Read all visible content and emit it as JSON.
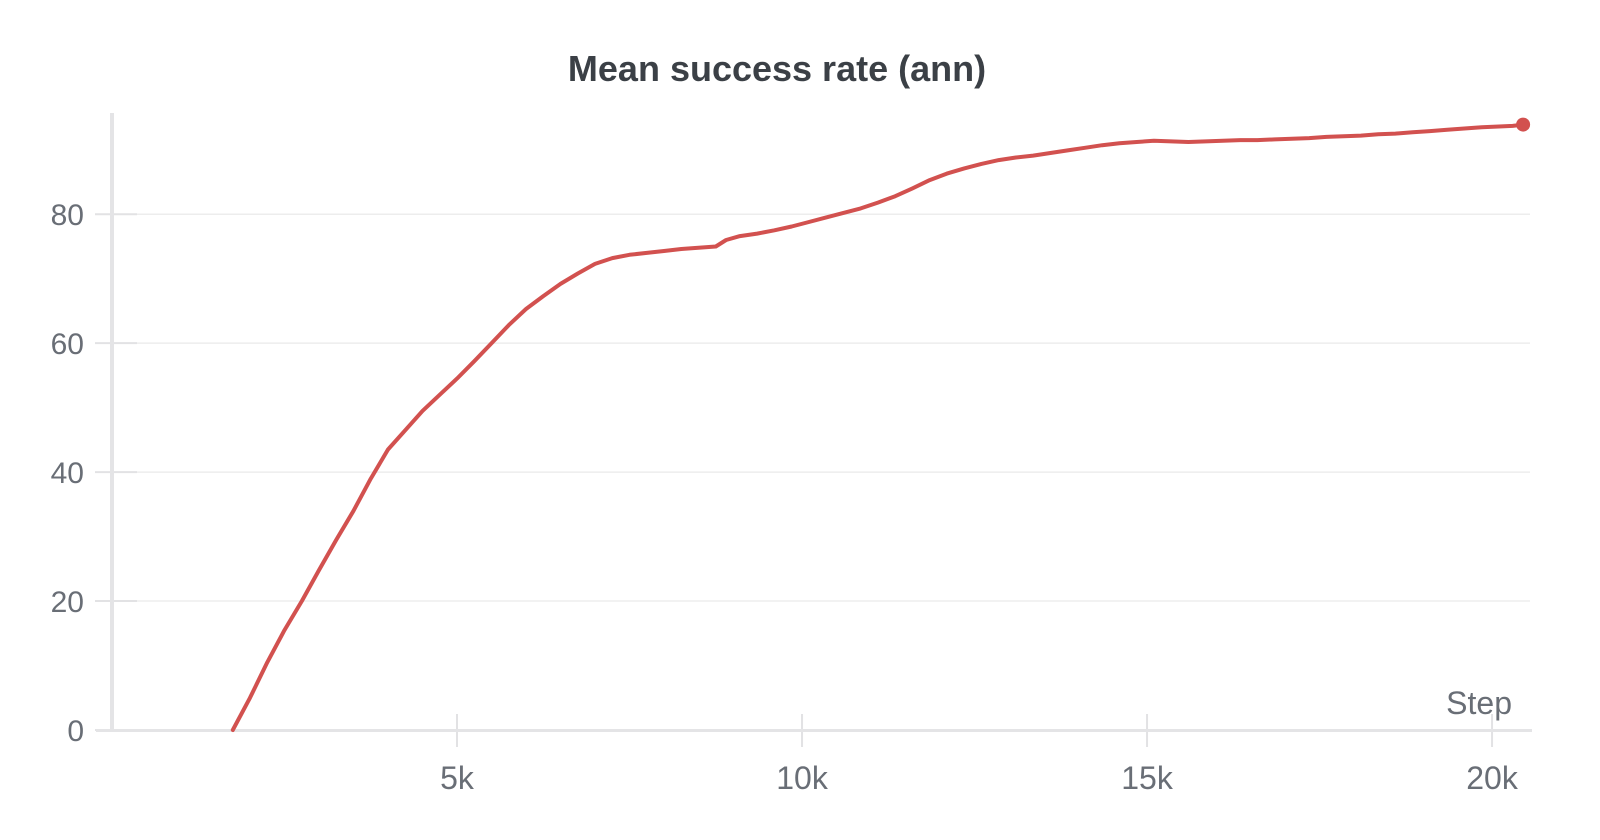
{
  "chart_data": {
    "type": "line",
    "title": "Mean success rate (ann)",
    "xlabel": "Step",
    "ylabel": "",
    "legend": "none",
    "grid": "horizontal-only",
    "xlim": [
      0,
      20550
    ],
    "ylim": [
      0,
      95.7
    ],
    "x_ticks": [
      {
        "value": 5000,
        "label": "5k"
      },
      {
        "value": 10000,
        "label": "10k"
      },
      {
        "value": 15000,
        "label": "15k"
      },
      {
        "value": 20000,
        "label": "20k"
      }
    ],
    "y_ticks": [
      {
        "value": 0,
        "label": "0"
      },
      {
        "value": 20,
        "label": "20"
      },
      {
        "value": 40,
        "label": "40"
      },
      {
        "value": 60,
        "label": "60"
      },
      {
        "value": 80,
        "label": "80"
      }
    ],
    "colors": {
      "line": "#d2514f",
      "end_dot": "#d2514f",
      "grid": "#ededed",
      "tick": "#e2e2e4",
      "axis": "#e4e4e6",
      "tick_label": "#696e76",
      "axis_label": "#696e76",
      "title": "#3b4046"
    },
    "series": [
      {
        "name": "Mean success rate (ann)",
        "color": "#d2514f",
        "end_marker": "dot",
        "points": [
          [
            1750,
            0
          ],
          [
            2000,
            5
          ],
          [
            2250,
            10.5
          ],
          [
            2500,
            15.5
          ],
          [
            2750,
            20
          ],
          [
            3000,
            24.8
          ],
          [
            3250,
            29.5
          ],
          [
            3500,
            34
          ],
          [
            3750,
            39
          ],
          [
            4000,
            43.5
          ],
          [
            4250,
            46.5
          ],
          [
            4500,
            49.5
          ],
          [
            4750,
            52
          ],
          [
            5000,
            54.5
          ],
          [
            5250,
            57.2
          ],
          [
            5500,
            60
          ],
          [
            5750,
            62.8
          ],
          [
            6000,
            65.3
          ],
          [
            6250,
            67.3
          ],
          [
            6500,
            69.2
          ],
          [
            6750,
            70.8
          ],
          [
            7000,
            72.3
          ],
          [
            7250,
            73.2
          ],
          [
            7500,
            73.7
          ],
          [
            7750,
            74
          ],
          [
            8000,
            74.3
          ],
          [
            8250,
            74.6
          ],
          [
            8500,
            74.8
          ],
          [
            8750,
            75
          ],
          [
            8900,
            76
          ],
          [
            9100,
            76.6
          ],
          [
            9350,
            77
          ],
          [
            9600,
            77.5
          ],
          [
            9850,
            78.1
          ],
          [
            10100,
            78.8
          ],
          [
            10350,
            79.5
          ],
          [
            10600,
            80.2
          ],
          [
            10850,
            80.9
          ],
          [
            11100,
            81.8
          ],
          [
            11350,
            82.8
          ],
          [
            11600,
            84
          ],
          [
            11850,
            85.3
          ],
          [
            12100,
            86.3
          ],
          [
            12350,
            87.1
          ],
          [
            12600,
            87.8
          ],
          [
            12850,
            88.4
          ],
          [
            13100,
            88.8
          ],
          [
            13350,
            89.1
          ],
          [
            13600,
            89.5
          ],
          [
            13850,
            89.9
          ],
          [
            14100,
            90.3
          ],
          [
            14350,
            90.7
          ],
          [
            14600,
            91
          ],
          [
            14850,
            91.2
          ],
          [
            15100,
            91.4
          ],
          [
            15350,
            91.3
          ],
          [
            15600,
            91.2
          ],
          [
            15850,
            91.3
          ],
          [
            16100,
            91.4
          ],
          [
            16350,
            91.5
          ],
          [
            16600,
            91.5
          ],
          [
            16850,
            91.6
          ],
          [
            17100,
            91.7
          ],
          [
            17350,
            91.8
          ],
          [
            17600,
            92
          ],
          [
            17850,
            92.1
          ],
          [
            18100,
            92.2
          ],
          [
            18350,
            92.4
          ],
          [
            18600,
            92.5
          ],
          [
            18850,
            92.7
          ],
          [
            19100,
            92.9
          ],
          [
            19350,
            93.1
          ],
          [
            19600,
            93.3
          ],
          [
            19850,
            93.5
          ],
          [
            20100,
            93.6
          ],
          [
            20300,
            93.7
          ],
          [
            20450,
            93.9
          ]
        ]
      }
    ]
  }
}
